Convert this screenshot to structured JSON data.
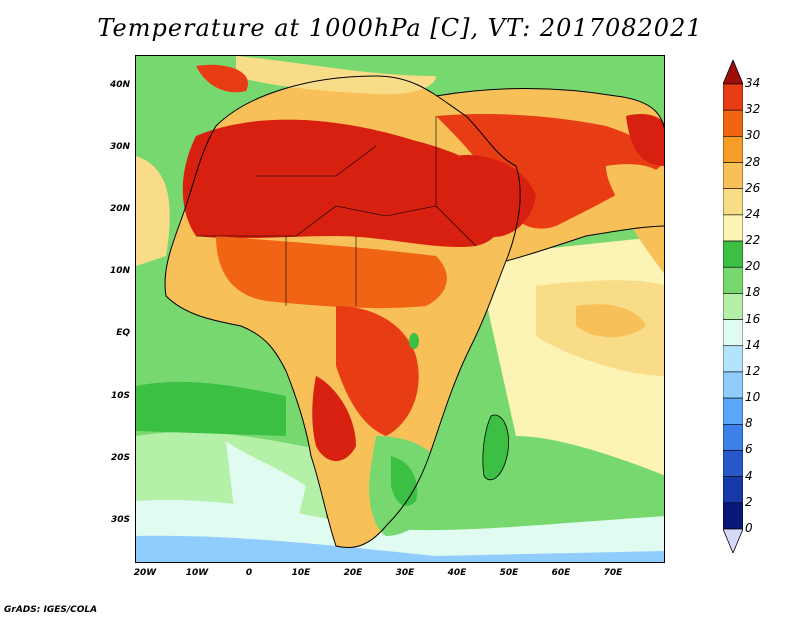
{
  "title": "Temperature at 1000hPa [C], VT: 2017082021",
  "footer": "GrADS: IGES/COLA",
  "map": {
    "lat_labels": [
      "40N",
      "30N",
      "20N",
      "10N",
      "EQ",
      "10S",
      "20S",
      "30S"
    ],
    "lon_labels": [
      "20W",
      "10W",
      "0",
      "10E",
      "20E",
      "30E",
      "40E",
      "50E",
      "60E",
      "70E"
    ],
    "extent": {
      "lon_min": -22,
      "lon_max": 80,
      "lat_min": -37,
      "lat_max": 45
    }
  },
  "colorbar": {
    "labels": [
      "34",
      "32",
      "30",
      "28",
      "26",
      "24",
      "22",
      "20",
      "18",
      "16",
      "14",
      "12",
      "10",
      "8",
      "6",
      "4",
      "2",
      "0"
    ],
    "colors": [
      "#d82010",
      "#e83c14",
      "#f06414",
      "#f89c28",
      "#f8c058",
      "#f8dc88",
      "#fcf4b4",
      "#3cc044",
      "#78d870",
      "#b4f0a8",
      "#e0fcf0",
      "#b4e4fc",
      "#90ccfc",
      "#5ca8f8",
      "#3c80e8",
      "#2858c8",
      "#1838a8",
      "#0c1878"
    ],
    "top_arrow_color": "#a00c08",
    "bottom_arrow_color": "#d8d8f8"
  },
  "palette": {
    "ocean_cool": "#b4e4fc",
    "ocean_mid": "#b4f0a8",
    "ocean_warm_green": "#3cc044",
    "land_hot": "#d82010"
  }
}
